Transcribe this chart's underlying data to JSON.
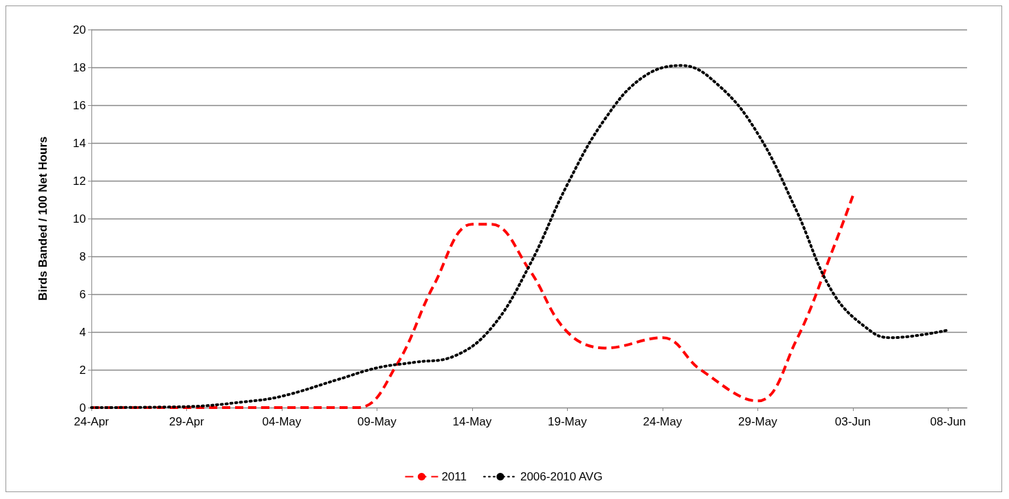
{
  "chart_data": {
    "type": "line",
    "ylabel": "Birds Banded / 100 Net Hours",
    "xlim": [
      "--04-24",
      "--06-09"
    ],
    "xticks": [
      {
        "value": "--04-24",
        "label": "24-Apr"
      },
      {
        "value": "--04-29",
        "label": "29-Apr"
      },
      {
        "value": "--05-04",
        "label": "04-May"
      },
      {
        "value": "--05-09",
        "label": "09-May"
      },
      {
        "value": "--05-14",
        "label": "14-May"
      },
      {
        "value": "--05-19",
        "label": "19-May"
      },
      {
        "value": "--05-24",
        "label": "24-May"
      },
      {
        "value": "--05-29",
        "label": "29-May"
      },
      {
        "value": "--06-03",
        "label": "03-Jun"
      },
      {
        "value": "--06-08",
        "label": "08-Jun"
      }
    ],
    "ylim": [
      0,
      20
    ],
    "yticks": [
      0,
      2,
      4,
      6,
      8,
      10,
      12,
      14,
      16,
      18,
      20
    ],
    "grid": "y",
    "legend": "bottom",
    "marker": "none",
    "series": [
      {
        "name": "2011",
        "color": "#ff0000",
        "line_style": "dashed",
        "x": [
          "--04-24",
          "--04-29",
          "--05-04",
          "--05-08",
          "--05-10",
          "--05-12",
          "--05-14",
          "--05-15",
          "--05-17",
          "--05-19",
          "--05-21",
          "--05-24",
          "--05-26",
          "--05-29",
          "--05-31",
          "--06-02",
          "--06-03"
        ],
        "values": [
          0,
          0,
          0,
          0,
          2.2,
          6.5,
          9.7,
          9.7,
          7.3,
          4.0,
          3.15,
          3.7,
          2.0,
          0.35,
          3.5,
          8.5,
          11.2
        ]
      },
      {
        "name": "2006-2010 AVG",
        "color": "#000000",
        "line_style": "dotted",
        "x": [
          "--04-24",
          "--04-29",
          "--05-02",
          "--05-04",
          "--05-07",
          "--05-09",
          "--05-11",
          "--05-13",
          "--05-15",
          "--05-17",
          "--05-19",
          "--05-21",
          "--05-23",
          "--05-25",
          "--05-27",
          "--05-29",
          "--05-31",
          "--06-02",
          "--06-04",
          "--06-05",
          "--06-08"
        ],
        "values": [
          0,
          0.05,
          0.3,
          0.6,
          1.5,
          2.1,
          2.4,
          2.7,
          4.2,
          7.5,
          11.8,
          15.3,
          17.5,
          18.1,
          17.0,
          14.5,
          10.5,
          6.0,
          4.0,
          3.7,
          4.1
        ]
      }
    ]
  }
}
